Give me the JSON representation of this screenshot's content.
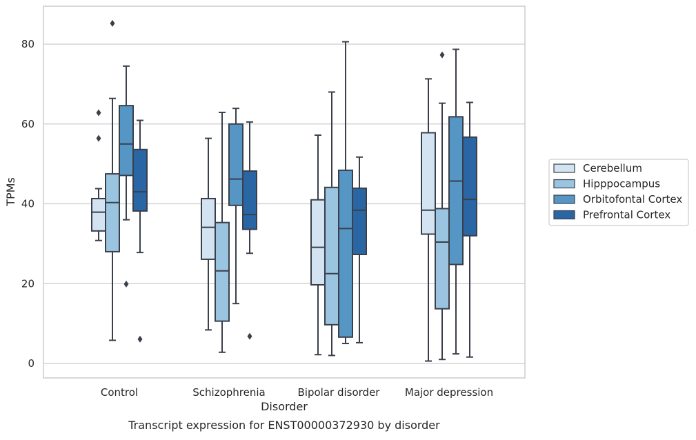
{
  "chart_data": {
    "type": "boxplot",
    "caption": "Transcript expression for ENST00000372930 by disorder",
    "xlabel": "Disorder",
    "ylabel": "TPMs",
    "ylim": [
      -3.5,
      89.5
    ],
    "yticks": [
      0,
      20,
      40,
      60,
      80
    ],
    "grid": true,
    "legend_position": "right",
    "categories": [
      "Control",
      "Schizophrenia",
      "Bipolar disorder",
      "Major depression"
    ],
    "series": [
      {
        "name": "Cerebellum",
        "color": "#d3e3f1",
        "boxes": [
          {
            "whislo": 30.8,
            "q1": 33.2,
            "med": 37.9,
            "q3": 41.3,
            "whishi": 43.8,
            "fliers": [
              56.4,
              62.8
            ]
          },
          {
            "whislo": 8.4,
            "q1": 26.1,
            "med": 34.1,
            "q3": 41.3,
            "whishi": 56.4,
            "fliers": []
          },
          {
            "whislo": 2.2,
            "q1": 19.7,
            "med": 29.1,
            "q3": 41.0,
            "whishi": 57.2,
            "fliers": []
          },
          {
            "whislo": 0.6,
            "q1": 32.4,
            "med": 38.4,
            "q3": 57.8,
            "whishi": 71.3,
            "fliers": []
          }
        ]
      },
      {
        "name": "Hipppocampus",
        "color": "#9ac4df",
        "boxes": [
          {
            "whislo": 5.8,
            "q1": 28.0,
            "med": 40.3,
            "q3": 47.5,
            "whishi": 66.4,
            "fliers": [
              85.2
            ]
          },
          {
            "whislo": 2.8,
            "q1": 10.6,
            "med": 23.2,
            "q3": 35.3,
            "whishi": 62.9,
            "fliers": []
          },
          {
            "whislo": 2.0,
            "q1": 9.7,
            "med": 22.5,
            "q3": 44.1,
            "whishi": 68.0,
            "fliers": []
          },
          {
            "whislo": 1.0,
            "q1": 13.7,
            "med": 30.4,
            "q3": 38.8,
            "whishi": 65.2,
            "fliers": [
              77.3
            ]
          }
        ]
      },
      {
        "name": "Orbitofontal Cortex",
        "color": "#5596c5",
        "boxes": [
          {
            "whislo": 36.0,
            "q1": 47.1,
            "med": 55.0,
            "q3": 64.6,
            "whishi": 74.5,
            "fliers": [
              19.9
            ]
          },
          {
            "whislo": 15.0,
            "q1": 39.6,
            "med": 46.2,
            "q3": 60.0,
            "whishi": 63.9,
            "fliers": []
          },
          {
            "whislo": 5.0,
            "q1": 6.6,
            "med": 33.8,
            "q3": 48.4,
            "whishi": 80.6,
            "fliers": []
          },
          {
            "whislo": 2.4,
            "q1": 24.8,
            "med": 45.7,
            "q3": 61.8,
            "whishi": 78.7,
            "fliers": []
          }
        ]
      },
      {
        "name": "Prefrontal Cortex",
        "color": "#2a66a4",
        "boxes": [
          {
            "whislo": 27.8,
            "q1": 38.2,
            "med": 43.0,
            "q3": 53.6,
            "whishi": 60.9,
            "fliers": [
              6.1
            ]
          },
          {
            "whislo": 27.6,
            "q1": 33.6,
            "med": 37.3,
            "q3": 48.2,
            "whishi": 60.5,
            "fliers": [
              6.8
            ]
          },
          {
            "whislo": 5.2,
            "q1": 27.3,
            "med": 38.4,
            "q3": 43.9,
            "whishi": 51.7,
            "fliers": []
          },
          {
            "whislo": 1.6,
            "q1": 32.0,
            "med": 41.1,
            "q3": 56.7,
            "whishi": 65.4,
            "fliers": []
          }
        ]
      }
    ]
  }
}
